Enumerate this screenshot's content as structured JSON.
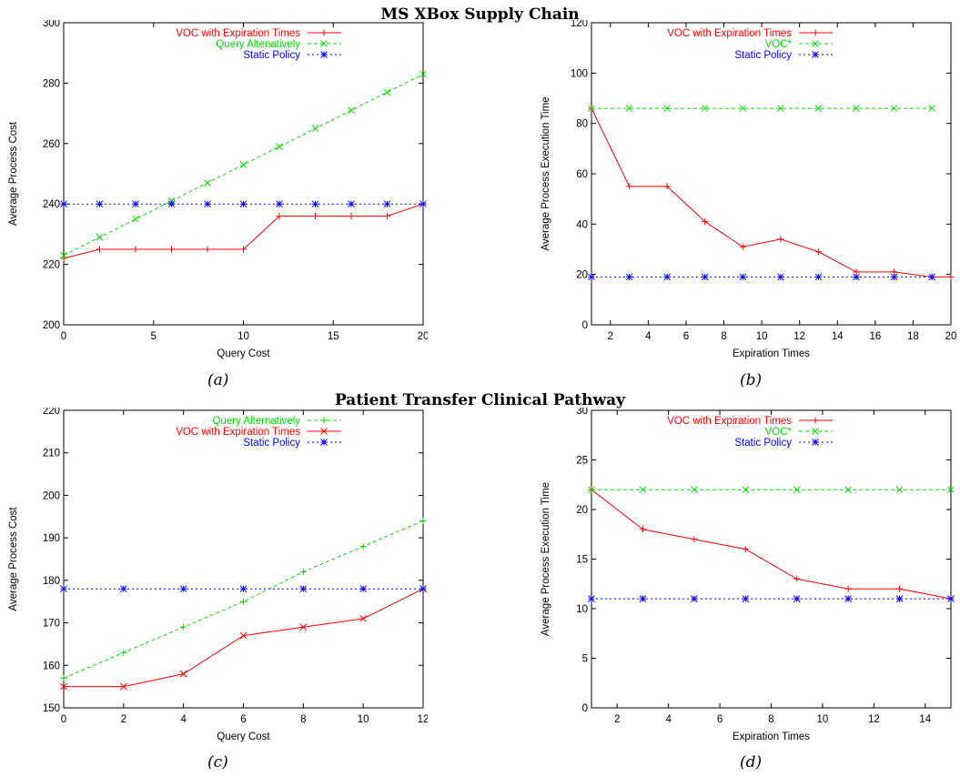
{
  "sections": [
    {
      "title": "MS XBox Supply Chain"
    },
    {
      "title": "Patient Transfer Clinical Pathway"
    }
  ],
  "captions": [
    "(a)",
    "(b)",
    "(c)",
    "(d)"
  ],
  "chart_data": [
    {
      "id": "a",
      "type": "line",
      "xlabel": "Query Cost",
      "ylabel": "Average Process Cost",
      "xlim": [
        0,
        20
      ],
      "ylim": [
        200,
        300
      ],
      "xticks": [
        0,
        5,
        10,
        15,
        20
      ],
      "yticks": [
        200,
        220,
        240,
        260,
        280,
        300
      ],
      "grid": false,
      "legend": "top-left",
      "series": [
        {
          "name": "VOC with Expiration Times",
          "color": "#ff0000",
          "marker": "plus",
          "dash": "",
          "x": [
            0,
            2,
            4,
            6,
            8,
            10,
            12,
            14,
            16,
            18,
            20
          ],
          "y": [
            222,
            225,
            225,
            225,
            225,
            225,
            236,
            236,
            236,
            236,
            240
          ]
        },
        {
          "name": "Query Altenatively",
          "color": "#00dd00",
          "marker": "x",
          "dash": "4,3",
          "x": [
            0,
            2,
            4,
            6,
            8,
            10,
            12,
            14,
            16,
            18,
            20
          ],
          "y": [
            223,
            229,
            235,
            241,
            247,
            253,
            259,
            265,
            271,
            277,
            283
          ]
        },
        {
          "name": "Static Policy",
          "color": "#0000ff",
          "marker": "star",
          "dash": "2,3",
          "x": [
            0,
            2,
            4,
            6,
            8,
            10,
            12,
            14,
            16,
            18,
            20
          ],
          "y": [
            240,
            240,
            240,
            240,
            240,
            240,
            240,
            240,
            240,
            240,
            240
          ]
        }
      ]
    },
    {
      "id": "b",
      "type": "line",
      "xlabel": "Expiration Times",
      "ylabel": "Average Process Execution Time",
      "xlim": [
        1,
        20
      ],
      "ylim": [
        0,
        120
      ],
      "xticks": [
        2,
        4,
        6,
        8,
        10,
        12,
        14,
        16,
        18,
        20
      ],
      "yticks": [
        0,
        20,
        40,
        60,
        80,
        100,
        120
      ],
      "grid": false,
      "legend": "top-center",
      "series": [
        {
          "name": "VOC with Expiration Times",
          "color": "#ff0000",
          "marker": "plus",
          "dash": "",
          "x": [
            1,
            3,
            5,
            7,
            9,
            11,
            13,
            15,
            17,
            19,
            20
          ],
          "y": [
            86,
            55,
            55,
            41,
            31,
            34,
            29,
            21,
            21,
            19,
            19
          ]
        },
        {
          "name": "VOC*",
          "color": "#00dd00",
          "marker": "x",
          "dash": "4,3",
          "x": [
            1,
            3,
            5,
            7,
            9,
            11,
            13,
            15,
            17,
            19
          ],
          "y": [
            86,
            86,
            86,
            86,
            86,
            86,
            86,
            86,
            86,
            86
          ]
        },
        {
          "name": "Static Policy",
          "color": "#0000ff",
          "marker": "star",
          "dash": "2,3",
          "x": [
            1,
            3,
            5,
            7,
            9,
            11,
            13,
            15,
            17,
            19
          ],
          "y": [
            19,
            19,
            19,
            19,
            19,
            19,
            19,
            19,
            19,
            19
          ]
        }
      ]
    },
    {
      "id": "c",
      "type": "line",
      "xlabel": "Query Cost",
      "ylabel": "Average Process Cost",
      "xlim": [
        0,
        12
      ],
      "ylim": [
        150,
        220
      ],
      "xticks": [
        0,
        2,
        4,
        6,
        8,
        10,
        12
      ],
      "yticks": [
        150,
        160,
        170,
        180,
        190,
        200,
        210,
        220
      ],
      "grid": false,
      "legend": "top-center",
      "series": [
        {
          "name": "Query Alternatively",
          "color": "#00dd00",
          "marker": "plus",
          "dash": "4,3",
          "x": [
            0,
            2,
            4,
            6,
            8,
            10,
            12
          ],
          "y": [
            157,
            163,
            169,
            175,
            182,
            188,
            194
          ]
        },
        {
          "name": "VOC with Expiration Times",
          "color": "#ff0000",
          "marker": "x",
          "dash": "",
          "x": [
            0,
            2,
            4,
            6,
            8,
            10,
            12
          ],
          "y": [
            155,
            155,
            158,
            167,
            169,
            171,
            178
          ]
        },
        {
          "name": "Static Policy",
          "color": "#0000ff",
          "marker": "star",
          "dash": "2,3",
          "x": [
            0,
            2,
            4,
            6,
            8,
            10,
            12
          ],
          "y": [
            178,
            178,
            178,
            178,
            178,
            178,
            178
          ]
        }
      ]
    },
    {
      "id": "d",
      "type": "line",
      "xlabel": "Expiration Times",
      "ylabel": "Average Process Execution Time",
      "xlim": [
        1,
        15
      ],
      "ylim": [
        0,
        30
      ],
      "xticks": [
        2,
        4,
        6,
        8,
        10,
        12,
        14
      ],
      "yticks": [
        0,
        5,
        10,
        15,
        20,
        25,
        30
      ],
      "grid": false,
      "legend": "top-center",
      "series": [
        {
          "name": "VOC with Expiration Times",
          "color": "#ff0000",
          "marker": "plus",
          "dash": "",
          "x": [
            1,
            3,
            5,
            7,
            9,
            11,
            13,
            15
          ],
          "y": [
            22,
            18,
            17,
            16,
            13,
            12,
            12,
            11
          ]
        },
        {
          "name": "VOC*",
          "color": "#00dd00",
          "marker": "x",
          "dash": "4,3",
          "x": [
            1,
            3,
            5,
            7,
            9,
            11,
            13,
            15
          ],
          "y": [
            22,
            22,
            22,
            22,
            22,
            22,
            22,
            22
          ]
        },
        {
          "name": "Static Policy",
          "color": "#0000ff",
          "marker": "star",
          "dash": "2,3",
          "x": [
            1,
            3,
            5,
            7,
            9,
            11,
            13,
            15
          ],
          "y": [
            11,
            11,
            11,
            11,
            11,
            11,
            11,
            11
          ]
        }
      ]
    }
  ]
}
